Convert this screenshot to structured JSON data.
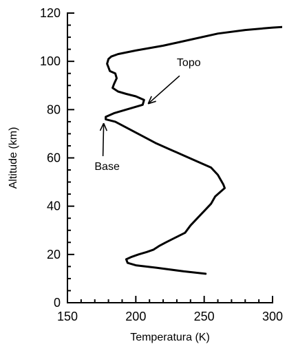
{
  "chart_data": {
    "type": "line",
    "xlabel": "Temperatura (K)",
    "ylabel": "Altitude (km)",
    "xlim": [
      150,
      300
    ],
    "ylim": [
      0,
      120
    ],
    "xticks": [
      150,
      200,
      250,
      300
    ],
    "yticks": [
      0,
      20,
      40,
      60,
      80,
      100,
      120
    ],
    "grid": false,
    "series": [
      {
        "x": [
          251,
          235,
          215,
          200,
          194,
          193,
          197,
          202,
          208,
          213,
          217,
          222,
          229,
          236,
          240,
          245,
          250,
          255,
          258,
          262,
          265,
          264,
          262,
          260,
          255,
          245,
          235,
          225,
          215,
          205,
          195,
          185,
          178,
          178,
          184,
          193,
          205,
          206,
          200,
          193,
          187,
          183,
          184,
          186,
          185,
          181,
          180,
          179,
          180,
          182,
          187,
          200,
          220,
          240,
          260,
          280,
          300,
          315
        ],
        "y": [
          12,
          13,
          14.5,
          15.5,
          16.5,
          18,
          19,
          20,
          21,
          22,
          23.5,
          25,
          27,
          29,
          32,
          35,
          38,
          41,
          44,
          46,
          47.5,
          49,
          51,
          53,
          56,
          58.5,
          61,
          63.5,
          66,
          69,
          72,
          75,
          76,
          77,
          78.5,
          80,
          82,
          84,
          85.5,
          86.5,
          87.5,
          89,
          90.5,
          93,
          95,
          96,
          97.5,
          99,
          101,
          102,
          103,
          104.5,
          106.5,
          109,
          111.5,
          113,
          114,
          114.5
        ]
      }
    ],
    "annotations": [
      {
        "text": "Topo",
        "target": [
          208,
          83
        ],
        "text_at": [
          230,
          98
        ]
      },
      {
        "text": "Base",
        "target": [
          177,
          75.5
        ],
        "text_at": [
          179,
          55
        ]
      }
    ]
  }
}
